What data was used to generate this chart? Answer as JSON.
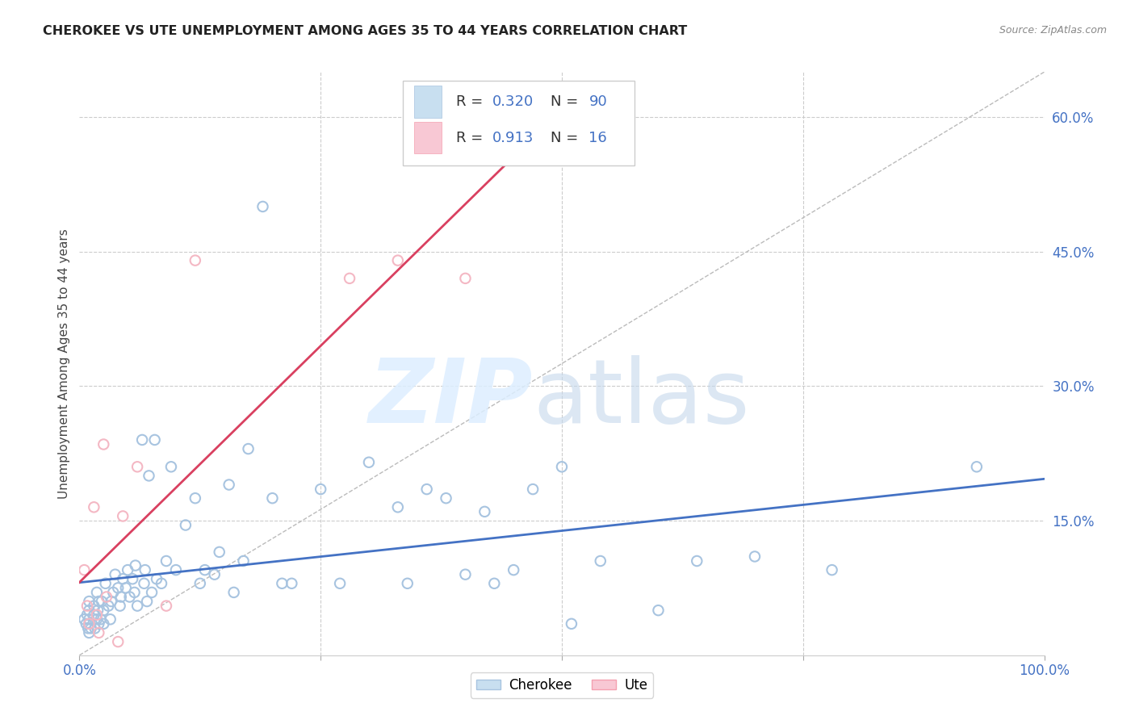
{
  "title": "CHEROKEE VS UTE UNEMPLOYMENT AMONG AGES 35 TO 44 YEARS CORRELATION CHART",
  "source": "Source: ZipAtlas.com",
  "ylabel": "Unemployment Among Ages 35 to 44 years",
  "xlim": [
    0,
    1.0
  ],
  "ylim": [
    0,
    0.65
  ],
  "yticks": [
    0.0,
    0.15,
    0.3,
    0.45,
    0.6
  ],
  "ytick_labels": [
    "",
    "15.0%",
    "30.0%",
    "45.0%",
    "60.0%"
  ],
  "xticks": [
    0.0,
    0.25,
    0.5,
    0.75,
    1.0
  ],
  "xtick_labels": [
    "0.0%",
    "",
    "",
    "",
    "100.0%"
  ],
  "cherokee_color": "#a8c4e0",
  "ute_color": "#f4b8c4",
  "cherokee_line_color": "#4472c4",
  "ute_line_color": "#d94060",
  "background_color": "#ffffff",
  "grid_color": "#cccccc",
  "cherokee_x": [
    0.005,
    0.007,
    0.008,
    0.009,
    0.01,
    0.01,
    0.01,
    0.01,
    0.01,
    0.012,
    0.015,
    0.015,
    0.016,
    0.018,
    0.018,
    0.019,
    0.02,
    0.02,
    0.022,
    0.023,
    0.025,
    0.025,
    0.027,
    0.03,
    0.032,
    0.033,
    0.035,
    0.037,
    0.04,
    0.042,
    0.043,
    0.045,
    0.048,
    0.05,
    0.052,
    0.055,
    0.057,
    0.058,
    0.06,
    0.065,
    0.067,
    0.068,
    0.07,
    0.072,
    0.075,
    0.078,
    0.08,
    0.085,
    0.09,
    0.095,
    0.1,
    0.11,
    0.12,
    0.125,
    0.13,
    0.14,
    0.145,
    0.155,
    0.16,
    0.17,
    0.175,
    0.19,
    0.2,
    0.21,
    0.22,
    0.25,
    0.27,
    0.3,
    0.33,
    0.34,
    0.36,
    0.38,
    0.4,
    0.42,
    0.43,
    0.45,
    0.47,
    0.5,
    0.51,
    0.54,
    0.6,
    0.64,
    0.7,
    0.78,
    0.93
  ],
  "cherokee_y": [
    0.04,
    0.035,
    0.045,
    0.03,
    0.025,
    0.05,
    0.06,
    0.04,
    0.035,
    0.03,
    0.055,
    0.045,
    0.03,
    0.07,
    0.04,
    0.05,
    0.06,
    0.035,
    0.04,
    0.06,
    0.05,
    0.035,
    0.08,
    0.055,
    0.04,
    0.06,
    0.07,
    0.09,
    0.075,
    0.055,
    0.065,
    0.085,
    0.075,
    0.095,
    0.065,
    0.085,
    0.07,
    0.1,
    0.055,
    0.24,
    0.08,
    0.095,
    0.06,
    0.2,
    0.07,
    0.24,
    0.085,
    0.08,
    0.105,
    0.21,
    0.095,
    0.145,
    0.175,
    0.08,
    0.095,
    0.09,
    0.115,
    0.19,
    0.07,
    0.105,
    0.23,
    0.5,
    0.175,
    0.08,
    0.08,
    0.185,
    0.08,
    0.215,
    0.165,
    0.08,
    0.185,
    0.175,
    0.09,
    0.16,
    0.08,
    0.095,
    0.185,
    0.21,
    0.035,
    0.105,
    0.05,
    0.105,
    0.11,
    0.095,
    0.21
  ],
  "ute_x": [
    0.005,
    0.008,
    0.01,
    0.015,
    0.018,
    0.02,
    0.025,
    0.028,
    0.04,
    0.045,
    0.06,
    0.09,
    0.12,
    0.28,
    0.33,
    0.4
  ],
  "ute_y": [
    0.095,
    0.055,
    0.035,
    0.165,
    0.045,
    0.025,
    0.235,
    0.065,
    0.015,
    0.155,
    0.21,
    0.055,
    0.44,
    0.42,
    0.44,
    0.42
  ]
}
